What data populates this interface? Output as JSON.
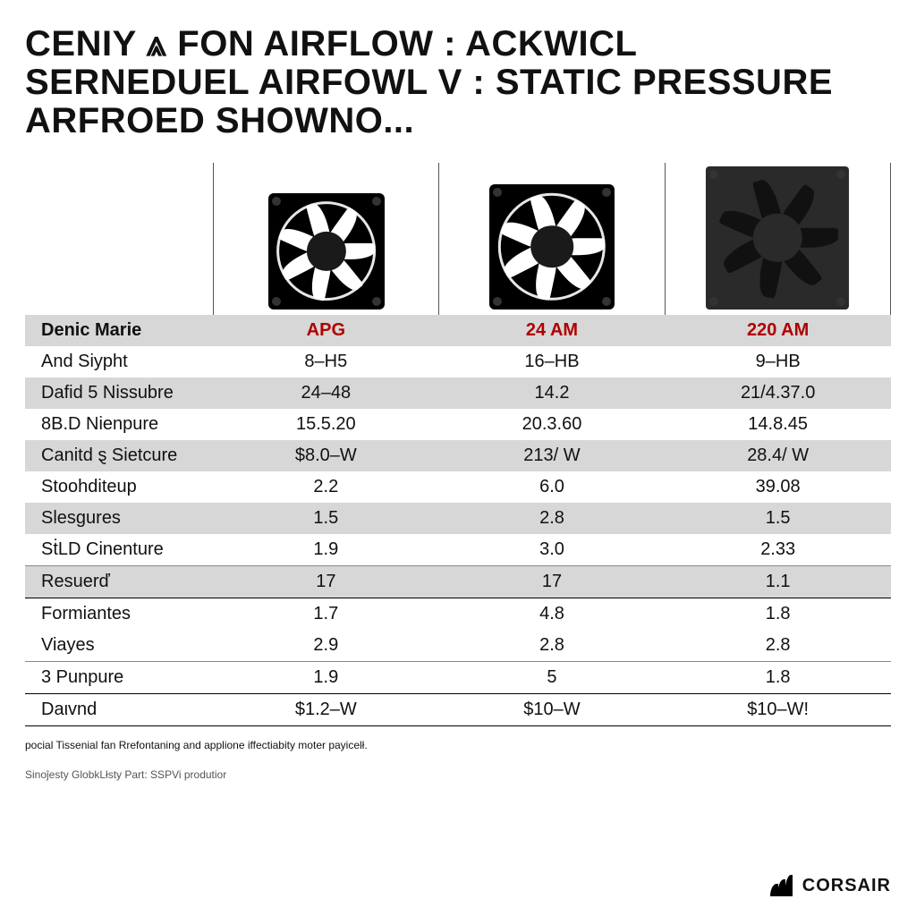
{
  "title_lines": [
    "CENIY ⩓ FON AIRFLOW : ACKWICL",
    "SERNEDUEL AIRFOWL V : STATIC PRESSURE",
    "ARFROED SHOWNO..."
  ],
  "table": {
    "header_row": {
      "label": "Denic Marie",
      "cols": [
        "APG",
        "24 AM",
        "220 AM"
      ],
      "header_color": "#b00000"
    },
    "rows": [
      {
        "label": "And Siypht",
        "cols": [
          "8–H5",
          "16–HB",
          "9–HB"
        ],
        "stripe": false
      },
      {
        "label": "Dafid 5 Nissubre",
        "cols": [
          "24–48",
          "14.2",
          "21/4.37.0"
        ],
        "stripe": true
      },
      {
        "label": "8B.D Nienpure",
        "cols": [
          "15.5.20",
          "20.3.60",
          "14.8.45"
        ],
        "stripe": false
      },
      {
        "label": "Canitd ȿ Sietcure",
        "cols": [
          "$8.0–W",
          "213/ W",
          "28.4/ W"
        ],
        "stripe": true
      },
      {
        "label": "Stoohditeup",
        "cols": [
          "2.2",
          "6.0",
          "39.08"
        ],
        "stripe": false
      },
      {
        "label": "Slesgures",
        "cols": [
          "1.5",
          "2.8",
          "1.5"
        ],
        "stripe": true
      },
      {
        "label": "SṫLD Cinenture",
        "cols": [
          "1.9",
          "3.0",
          "2.33"
        ],
        "stripe": false
      },
      {
        "label": "Resuerď",
        "cols": [
          "17",
          "17",
          "1.1"
        ],
        "stripe": true,
        "rule": "thin"
      },
      {
        "label": "Formiantes",
        "cols": [
          "1.7",
          "4.8",
          "1.8"
        ],
        "stripe": false,
        "rule": "strong"
      },
      {
        "label": "Viayes",
        "cols": [
          "2.9",
          "2.8",
          "2.8"
        ],
        "stripe": false
      },
      {
        "label": "3 Punpure",
        "cols": [
          "1.9",
          "5",
          "1.8"
        ],
        "stripe": false,
        "rule": "thin"
      },
      {
        "label": "Daιvnd",
        "cols": [
          "$1.2–W",
          "$10–W",
          "$10–W!"
        ],
        "stripe": false,
        "rule": "strong",
        "bottom_rule": true
      }
    ],
    "stripe_color": "#d7d7d7",
    "label_fontsize": 20
  },
  "footnote": "pocial Tissenial fan Rrefontaning and applione iffectiabity\nmoter payicelł.",
  "footnote2": "Sinoĵesty GlobkLłsty Part: SSPVi produtior",
  "brand": "CORSAIR",
  "colors": {
    "bg": "#ffffff",
    "text": "#111111",
    "stripe": "#d7d7d7",
    "accent": "#b00000"
  }
}
